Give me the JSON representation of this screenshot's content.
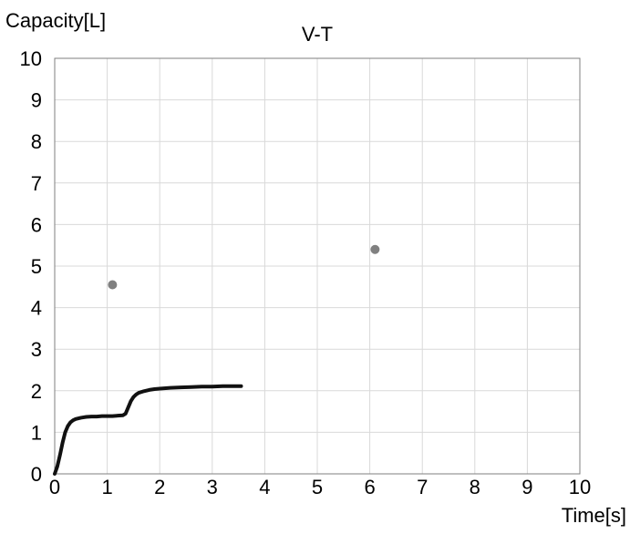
{
  "chart_data": {
    "type": "line",
    "title": "V-T",
    "xlabel": "Time[s]",
    "ylabel": "Capacity[L]",
    "xlim": [
      0,
      10
    ],
    "ylim": [
      0,
      10
    ],
    "xticks": [
      "0",
      "1",
      "2",
      "3",
      "4",
      "5",
      "6",
      "7",
      "8",
      "9",
      "10"
    ],
    "yticks": [
      "0",
      "1",
      "2",
      "3",
      "4",
      "5",
      "6",
      "7",
      "8",
      "9",
      "10"
    ],
    "grid": true,
    "legend": "none",
    "series": [
      {
        "kind": "line",
        "color": "#111111",
        "x": [
          0.0,
          0.05,
          0.1,
          0.15,
          0.2,
          0.25,
          0.3,
          0.35,
          0.4,
          0.5,
          0.6,
          0.7,
          0.8,
          0.9,
          1.0,
          1.1,
          1.2,
          1.3,
          1.35,
          1.4,
          1.45,
          1.5,
          1.55,
          1.6,
          1.7,
          1.8,
          1.9,
          2.0,
          2.2,
          2.4,
          2.6,
          2.8,
          3.0,
          3.2,
          3.4,
          3.55
        ],
        "y": [
          0.0,
          0.18,
          0.45,
          0.75,
          1.0,
          1.15,
          1.24,
          1.29,
          1.32,
          1.35,
          1.37,
          1.38,
          1.38,
          1.39,
          1.39,
          1.39,
          1.4,
          1.41,
          1.45,
          1.6,
          1.75,
          1.85,
          1.91,
          1.95,
          1.99,
          2.02,
          2.04,
          2.05,
          2.07,
          2.08,
          2.09,
          2.1,
          2.1,
          2.11,
          2.11,
          2.11
        ]
      },
      {
        "kind": "scatter",
        "color": "#808080",
        "x": [
          1.1,
          6.1
        ],
        "y": [
          4.55,
          5.4
        ]
      }
    ]
  }
}
